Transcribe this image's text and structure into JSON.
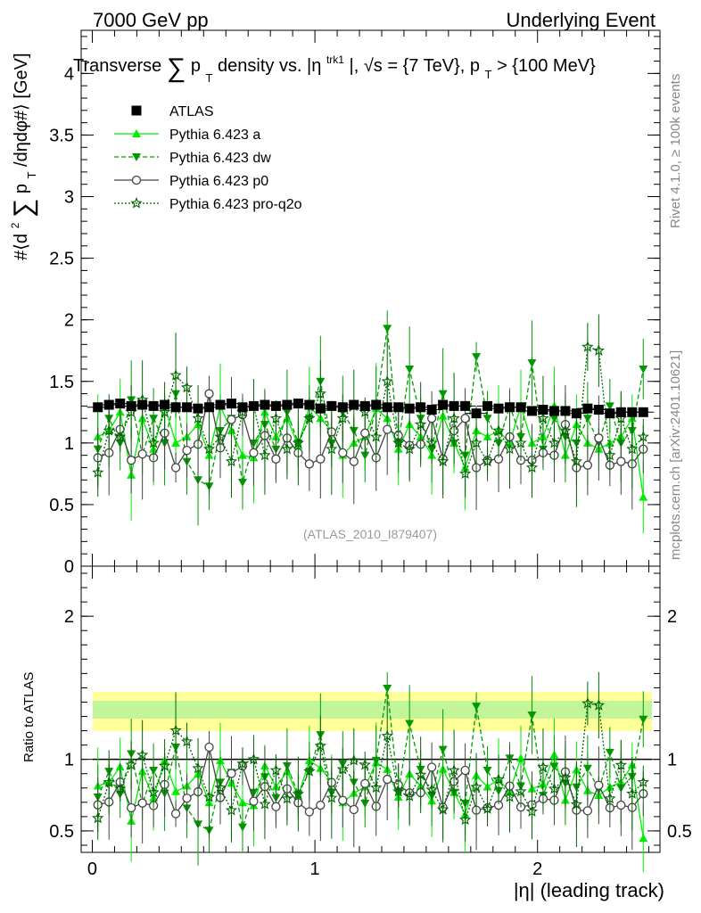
{
  "header": {
    "left": "7000 GeV pp",
    "right": "Underlying Event"
  },
  "watermarks": {
    "rivet": "Rivet 4.1.0, ≥ 100k events",
    "mcplots": "mcplots.cern.ch [arXiv:2401.10621]",
    "analysis": "(ATLAS_2010_I879407)"
  },
  "chart_data": [
    {
      "type": "line",
      "panel": "main",
      "title": "Transverse Σ p_T density vs. |η^trk1|, √s = {7 TeV}, p_T > {100 MeV}",
      "title_parts": {
        "a": "Transverse",
        "b": "p",
        "c": "T",
        "d": "density vs. |η",
        "e": "trk1",
        "f": "|, √s = {7 TeV}, p",
        "g": "T",
        "h": "> {100 MeV}"
      },
      "ylabel": "#⟨d² Σ p_T /dηdφ#⟩ [GeV]",
      "ylabel_parts": {
        "a": "#⟨d",
        "b": "2",
        "c": "p",
        "d": "T",
        "e": "/dηdφ#⟩ [GeV]"
      },
      "xlim": [
        -0.05,
        2.55
      ],
      "ylim": [
        0,
        4.35
      ],
      "yticks": [
        "0",
        "0.5",
        "1",
        "1.5",
        "2",
        "2.5",
        "3",
        "3.5",
        "4"
      ],
      "x": [
        0.025,
        0.075,
        0.125,
        0.175,
        0.225,
        0.275,
        0.325,
        0.375,
        0.425,
        0.475,
        0.525,
        0.575,
        0.625,
        0.675,
        0.725,
        0.775,
        0.825,
        0.875,
        0.925,
        0.975,
        1.025,
        1.075,
        1.125,
        1.175,
        1.225,
        1.275,
        1.325,
        1.375,
        1.425,
        1.475,
        1.525,
        1.575,
        1.625,
        1.675,
        1.725,
        1.775,
        1.825,
        1.875,
        1.925,
        1.975,
        2.025,
        2.075,
        2.125,
        2.175,
        2.225,
        2.275,
        2.325,
        2.375,
        2.425,
        2.475
      ],
      "series": [
        {
          "name": "ATLAS",
          "color": "#000000",
          "marker": "square",
          "line": "none",
          "values": [
            1.29,
            1.31,
            1.32,
            1.3,
            1.31,
            1.3,
            1.31,
            1.29,
            1.29,
            1.28,
            1.29,
            1.31,
            1.32,
            1.29,
            1.3,
            1.31,
            1.3,
            1.31,
            1.32,
            1.31,
            1.28,
            1.3,
            1.29,
            1.31,
            1.3,
            1.31,
            1.29,
            1.29,
            1.28,
            1.29,
            1.27,
            1.31,
            1.3,
            1.3,
            1.24,
            1.3,
            1.28,
            1.29,
            1.29,
            1.26,
            1.27,
            1.26,
            1.26,
            1.24,
            1.28,
            1.27,
            1.24,
            1.25,
            1.25,
            1.25
          ]
        },
        {
          "name": "Pythia 6.423 a",
          "color": "#00ee00",
          "marker": "triangle-up",
          "line": "solid",
          "values": [
            1.05,
            1.1,
            1.25,
            0.74,
            1.2,
            0.95,
            1.3,
            1.0,
            1.05,
            1.15,
            0.9,
            1.3,
            1.1,
            0.9,
            0.88,
            1.25,
            1.05,
            1.2,
            0.98,
            1.3,
            1.2,
            1.1,
            0.9,
            1.0,
            1.05,
            1.28,
            1.2,
            0.95,
            1.15,
            1.05,
            0.9,
            1.22,
            1.0,
            0.8,
            1.1,
            1.05,
            1.1,
            1.0,
            1.3,
            1.0,
            1.05,
            1.3,
            0.9,
            1.15,
            1.0,
            0.95,
            1.0,
            1.05,
            1.2,
            0.56
          ]
        },
        {
          "name": "Pythia 6.423 dw",
          "color": "#009900",
          "marker": "triangle-down",
          "line": "dashed",
          "values": [
            0.95,
            1.2,
            1.0,
            1.35,
            0.9,
            1.2,
            1.0,
            1.4,
            0.85,
            0.7,
            0.65,
            1.1,
            1.2,
            0.68,
            1.0,
            1.15,
            0.95,
            1.25,
            1.0,
            1.2,
            1.5,
            1.0,
            1.25,
            1.1,
            0.9,
            1.3,
            1.93,
            1.0,
            1.6,
            1.2,
            0.95,
            1.4,
            1.0,
            0.9,
            1.7,
            1.2,
            1.0,
            1.3,
            1.05,
            1.65,
            0.95,
            1.2,
            1.05,
            1.0,
            1.2,
            1.0,
            1.3,
            1.0,
            1.1,
            1.6
          ]
        },
        {
          "name": "Pythia 6.423 p0",
          "color": "#444444",
          "marker": "circle-open",
          "line": "solid",
          "values": [
            0.88,
            0.92,
            1.11,
            0.86,
            0.91,
            0.88,
            1.08,
            0.8,
            0.94,
            0.99,
            1.4,
            0.96,
            1.19,
            1.23,
            0.92,
            1.06,
            0.87,
            1.04,
            0.92,
            0.83,
            0.87,
            1.09,
            0.92,
            0.85,
            1.08,
            0.88,
            1.11,
            1.06,
            0.98,
            0.99,
            1.2,
            0.87,
            1.1,
            1.2,
            0.8,
            0.86,
            0.87,
            1.05,
            0.86,
            0.86,
            0.92,
            0.9,
            1.15,
            0.8,
            0.82,
            1.04,
            0.82,
            0.85,
            0.83,
            0.95
          ]
        },
        {
          "name": "Pythia 6.423 pro-q2o",
          "color": "#006600",
          "marker": "star-open",
          "line": "dotted",
          "values": [
            0.76,
            1.1,
            1.05,
            1.25,
            1.35,
            1.0,
            1.25,
            1.55,
            1.45,
            1.2,
            0.95,
            1.05,
            0.85,
            1.25,
            1.3,
            0.9,
            1.2,
            0.95,
            1.0,
            1.2,
            1.4,
            0.95,
            1.2,
            1.3,
            1.25,
            1.05,
            1.5,
            1.0,
            0.95,
            1.15,
            1.0,
            0.85,
            1.2,
            0.75,
            1.0,
            0.85,
            1.1,
            0.95,
            1.0,
            0.8,
            1.2,
            1.0,
            1.1,
            0.85,
            1.78,
            1.75,
            0.9,
            1.2,
            0.95,
            1.05
          ]
        }
      ]
    },
    {
      "type": "line",
      "panel": "ratio",
      "ylabel": "Ratio to ATLAS",
      "xlabel": "|η| (leading track)",
      "xlim": [
        -0.05,
        2.55
      ],
      "ylim": [
        0.35,
        2.35
      ],
      "xticks": [
        "0",
        "1",
        "2"
      ],
      "yticks": [
        "0.5",
        "1",
        "2"
      ],
      "reference": 1.0,
      "note": "series ratios computed as Pythia / ATLAS"
    }
  ]
}
